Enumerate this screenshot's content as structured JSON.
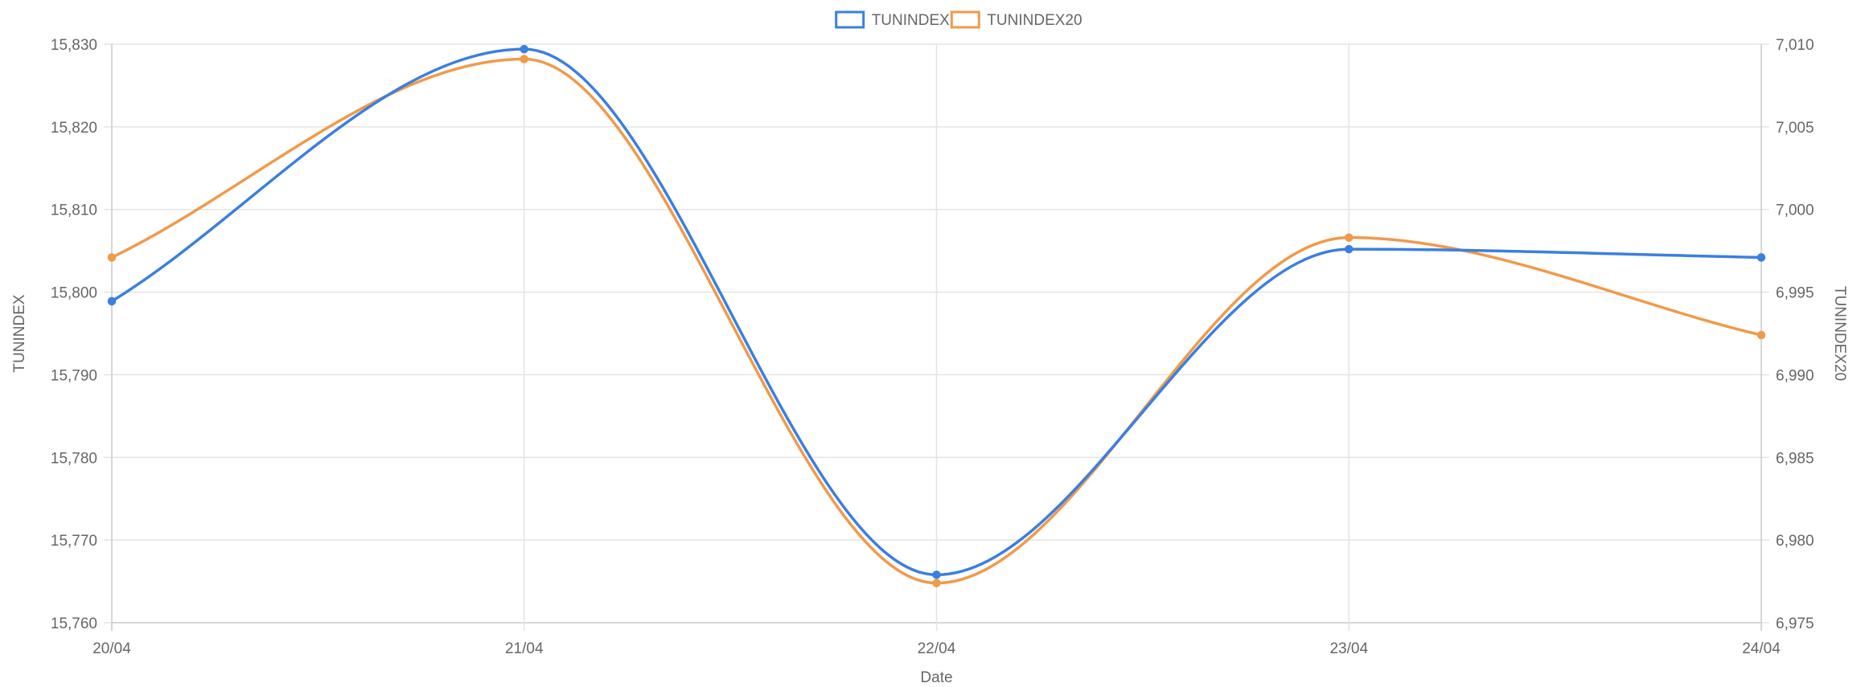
{
  "chart_data": {
    "type": "line",
    "x": [
      "20/04",
      "21/04",
      "22/04",
      "23/04",
      "24/04"
    ],
    "xlabel": "Date",
    "series": [
      {
        "name": "TUNINDEX",
        "axis": "left",
        "color": "#3b7fe0",
        "values": [
          15798.9,
          15829.4,
          15765.8,
          15805.2,
          15804.2
        ]
      },
      {
        "name": "TUNINDEX20",
        "axis": "right",
        "color": "#f09a4a",
        "values": [
          6997.1,
          7009.1,
          6977.4,
          6998.3,
          6992.4
        ]
      }
    ],
    "y_left": {
      "label": "TUNINDEX",
      "lim": [
        15760,
        15830
      ],
      "ticks": [
        "15,830",
        "15,820",
        "15,810",
        "15,800",
        "15,790",
        "15,780",
        "15,770",
        "15,760"
      ]
    },
    "y_right": {
      "label": "TUNINDEX20",
      "lim": [
        6975,
        7010
      ],
      "ticks": [
        "7,010",
        "7,005",
        "7,000",
        "6,995",
        "6,990",
        "6,985",
        "6,980",
        "6,975"
      ]
    },
    "grid": true,
    "legend": "top-center",
    "curve": "smooth"
  }
}
